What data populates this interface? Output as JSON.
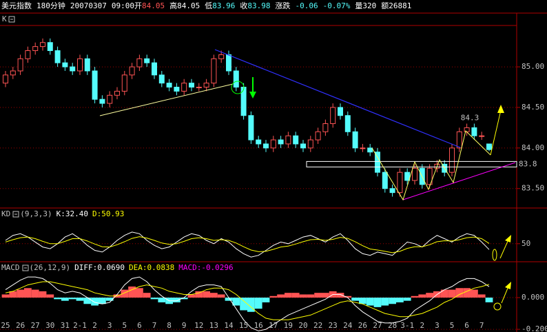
{
  "header": [
    {
      "text": "美元指数",
      "color": "#ffffff"
    },
    {
      "text": "180分钟",
      "color": "#ffffff"
    },
    {
      "text": "20070307",
      "color": "#ffffff"
    },
    {
      "text": "09:00",
      "color": "#ffffff"
    },
    {
      "text": "开",
      "color": "#ffffff"
    },
    {
      "text": "84.05",
      "color": "#ff5454"
    },
    {
      "text": "高",
      "color": "#ffffff"
    },
    {
      "text": "84.05",
      "color": "#ffffff"
    },
    {
      "text": "低",
      "color": "#ffffff"
    },
    {
      "text": "83.96",
      "color": "#54fcfc"
    },
    {
      "text": "收",
      "color": "#ffffff"
    },
    {
      "text": "83.98",
      "color": "#54fcfc"
    },
    {
      "text": "涨跌",
      "color": "#ffffff"
    },
    {
      "text": "-0.06",
      "color": "#54fcfc"
    },
    {
      "text": "-0.07%",
      "color": "#54fcfc"
    },
    {
      "text": "量320",
      "color": "#ffffff"
    },
    {
      "text": "额26881",
      "color": "#ffffff"
    }
  ],
  "chart_data": [
    {
      "type": "candlestick",
      "title": "K",
      "categories": [
        "25",
        null,
        "26",
        null,
        "27",
        null,
        "30",
        null,
        "31",
        null,
        "2-1",
        null,
        "2",
        null,
        "3",
        null,
        "5",
        null,
        "6",
        null,
        "7",
        null,
        "8",
        null,
        "9",
        null,
        "12",
        null,
        "13",
        null,
        "14",
        null,
        "15",
        null,
        "16",
        null,
        "17",
        null,
        "19",
        null,
        "20",
        null,
        "22",
        null,
        "23",
        null,
        "24",
        null,
        "26",
        null,
        "27",
        null,
        "28",
        null,
        "3-1",
        null,
        "2",
        null,
        "3",
        null,
        "5",
        null,
        "6",
        null,
        "7",
        null
      ],
      "open": [
        84.8,
        84.9,
        84.95,
        85.1,
        85.2,
        85.25,
        85.3,
        85.2,
        85.05,
        85.0,
        84.95,
        85.1,
        84.95,
        84.6,
        84.55,
        84.65,
        84.7,
        84.9,
        85.0,
        85.1,
        85.05,
        84.9,
        84.8,
        84.75,
        84.7,
        84.8,
        84.75,
        84.75,
        84.8,
        85.1,
        85.15,
        84.95,
        84.75,
        84.4,
        84.1,
        84.05,
        84.0,
        84.1,
        84.05,
        84.15,
        84.05,
        84.0,
        84.1,
        84.2,
        84.3,
        84.5,
        84.4,
        84.2,
        84.0,
        84.0,
        83.95,
        83.7,
        83.5,
        83.45,
        83.7,
        83.6,
        83.75,
        83.55,
        83.75,
        83.8,
        83.7,
        84.0,
        84.2,
        84.25,
        84.15,
        84.05
      ],
      "high": [
        84.95,
        85.0,
        85.15,
        85.25,
        85.3,
        85.35,
        85.35,
        85.25,
        85.1,
        85.05,
        85.15,
        85.15,
        85.0,
        84.65,
        84.7,
        84.75,
        84.95,
        85.05,
        85.15,
        85.15,
        85.1,
        84.95,
        84.85,
        84.8,
        84.85,
        84.85,
        84.8,
        84.85,
        85.15,
        85.2,
        85.2,
        85.0,
        84.8,
        84.45,
        84.15,
        84.1,
        84.15,
        84.15,
        84.2,
        84.2,
        84.1,
        84.15,
        84.25,
        84.35,
        84.55,
        84.55,
        84.45,
        84.25,
        84.05,
        84.05,
        84.0,
        83.75,
        83.55,
        83.75,
        83.75,
        83.8,
        83.8,
        83.8,
        83.85,
        83.85,
        84.05,
        84.25,
        84.3,
        84.3,
        84.2,
        84.05
      ],
      "low": [
        84.75,
        84.85,
        84.9,
        85.05,
        85.15,
        85.2,
        85.15,
        85.0,
        84.95,
        84.9,
        84.9,
        84.9,
        84.55,
        84.5,
        84.5,
        84.6,
        84.65,
        84.85,
        84.95,
        85.0,
        84.85,
        84.75,
        84.7,
        84.65,
        84.65,
        84.7,
        84.7,
        84.7,
        84.75,
        85.05,
        84.9,
        84.7,
        84.35,
        84.05,
        84.0,
        83.95,
        83.95,
        84.0,
        84.0,
        84.0,
        83.95,
        83.95,
        84.05,
        84.15,
        84.25,
        84.35,
        84.15,
        83.95,
        83.95,
        83.9,
        83.65,
        83.45,
        83.4,
        83.4,
        83.55,
        83.55,
        83.5,
        83.5,
        83.7,
        83.65,
        83.65,
        83.95,
        84.15,
        84.1,
        84.1,
        83.96
      ],
      "close": [
        84.9,
        84.95,
        85.1,
        85.2,
        85.25,
        85.3,
        85.2,
        85.05,
        85.0,
        84.95,
        85.1,
        84.95,
        84.6,
        84.55,
        84.65,
        84.7,
        84.9,
        85.0,
        85.1,
        85.05,
        84.9,
        84.8,
        84.75,
        84.7,
        84.8,
        84.75,
        84.75,
        84.8,
        85.1,
        85.15,
        84.95,
        84.75,
        84.4,
        84.1,
        84.05,
        84.0,
        84.1,
        84.05,
        84.15,
        84.05,
        84.0,
        84.1,
        84.2,
        84.3,
        84.5,
        84.4,
        84.2,
        84.0,
        84.0,
        83.95,
        83.7,
        83.5,
        83.45,
        83.7,
        83.6,
        83.75,
        83.55,
        83.75,
        83.8,
        83.7,
        84.0,
        84.2,
        84.25,
        84.15,
        84.15,
        83.98
      ],
      "up_color": "#ff5454",
      "down_color": "#54fcfc",
      "month_color": "#ff5454",
      "day_color": "#54fcfc",
      "ylim": [
        83.26,
        85.51
      ],
      "yticks": [
        {
          "value": 83.5,
          "label": "83.50"
        },
        {
          "value": 84,
          "label": "84.00"
        },
        {
          "value": 84.5,
          "label": "84.50"
        },
        {
          "value": 85,
          "label": "85.00"
        }
      ],
      "annotations": [
        {
          "value": 84.3,
          "label": "84.3"
        },
        {
          "value": 83.8,
          "label": "83.8"
        }
      ]
    },
    {
      "type": "line",
      "title": "KD",
      "params": "(9,3,3)",
      "series": [
        {
          "name": "K:32.40",
          "color": "#ffffff",
          "values": [
            60,
            75,
            80,
            70,
            55,
            40,
            35,
            50,
            70,
            80,
            65,
            45,
            30,
            25,
            40,
            60,
            75,
            85,
            80,
            60,
            45,
            35,
            40,
            55,
            70,
            80,
            75,
            60,
            50,
            65,
            55,
            35,
            20,
            10,
            15,
            30,
            45,
            55,
            50,
            60,
            70,
            75,
            65,
            55,
            70,
            80,
            60,
            35,
            20,
            15,
            25,
            20,
            15,
            35,
            55,
            50,
            40,
            60,
            75,
            65,
            55,
            70,
            80,
            75,
            55,
            32.4
          ]
        },
        {
          "name": "D:50.93",
          "color": "#ffff00",
          "values": [
            55,
            62,
            68,
            70,
            65,
            57,
            50,
            50,
            57,
            65,
            65,
            58,
            49,
            41,
            40,
            47,
            56,
            66,
            71,
            67,
            60,
            52,
            48,
            50,
            57,
            65,
            68,
            65,
            60,
            62,
            60,
            52,
            41,
            31,
            26,
            27,
            33,
            40,
            43,
            49,
            56,
            62,
            63,
            60,
            63,
            69,
            66,
            56,
            44,
            34,
            31,
            27,
            23,
            27,
            36,
            41,
            41,
            47,
            56,
            59,
            58,
            62,
            68,
            70,
            65,
            50.93
          ]
        }
      ],
      "ylim": [
        0,
        124
      ],
      "yticks": [
        50
      ]
    },
    {
      "type": "macd",
      "title": "MACD",
      "params": "(26,12,9)",
      "series": [
        {
          "name": "DIFF:0.0690",
          "color": "#ffffff",
          "values": [
            0.05,
            0.08,
            0.11,
            0.13,
            0.13,
            0.12,
            0.09,
            0.05,
            0.03,
            0.04,
            0.03,
            0.0,
            -0.03,
            -0.04,
            -0.03,
            0.02,
            0.08,
            0.12,
            0.13,
            0.1,
            0.05,
            0.01,
            -0.02,
            -0.02,
            0.0,
            0.04,
            0.07,
            0.08,
            0.08,
            0.07,
            0.0,
            -0.07,
            -0.14,
            -0.19,
            -0.21,
            -0.2,
            -0.17,
            -0.14,
            -0.11,
            -0.09,
            -0.07,
            -0.05,
            -0.03,
            -0.01,
            0.02,
            0.02,
            0.0,
            -0.05,
            -0.09,
            -0.12,
            -0.15,
            -0.16,
            -0.16,
            -0.15,
            -0.13,
            -0.08,
            -0.05,
            -0.02,
            0.02,
            0.05,
            0.07,
            0.1,
            0.12,
            0.12,
            0.1,
            0.069
          ]
        },
        {
          "name": "DEA:0.0838",
          "color": "#ffff00",
          "values": [
            0.03,
            0.04,
            0.06,
            0.08,
            0.09,
            0.1,
            0.1,
            0.09,
            0.08,
            0.07,
            0.06,
            0.05,
            0.03,
            0.02,
            0.01,
            0.01,
            0.03,
            0.05,
            0.07,
            0.08,
            0.07,
            0.06,
            0.04,
            0.03,
            0.02,
            0.02,
            0.03,
            0.05,
            0.06,
            0.06,
            0.05,
            0.02,
            -0.02,
            -0.06,
            -0.1,
            -0.13,
            -0.14,
            -0.14,
            -0.14,
            -0.13,
            -0.12,
            -0.11,
            -0.09,
            -0.07,
            -0.05,
            -0.03,
            -0.02,
            -0.03,
            -0.04,
            -0.06,
            -0.08,
            -0.1,
            -0.11,
            -0.12,
            -0.12,
            -0.11,
            -0.1,
            -0.08,
            -0.06,
            -0.03,
            -0.01,
            0.02,
            0.04,
            0.06,
            0.07,
            0.0838
          ]
        },
        {
          "name": "MACD:-0.0296",
          "color": "#ff00ff",
          "pos_color": "#ff5454",
          "neg_color": "#54fcfc",
          "values": [
            0.02,
            0.04,
            0.05,
            0.06,
            0.05,
            0.04,
            0.02,
            -0.01,
            -0.02,
            -0.01,
            -0.02,
            -0.04,
            -0.05,
            -0.04,
            -0.02,
            0.02,
            0.05,
            0.07,
            0.06,
            0.03,
            -0.01,
            -0.03,
            -0.04,
            -0.03,
            -0.01,
            0.02,
            0.04,
            0.04,
            0.03,
            0.02,
            -0.02,
            -0.05,
            -0.08,
            -0.09,
            -0.07,
            -0.03,
            0.01,
            0.02,
            0.03,
            0.03,
            0.02,
            0.02,
            0.03,
            0.03,
            0.04,
            0.03,
            0.01,
            -0.02,
            -0.04,
            -0.05,
            -0.06,
            -0.05,
            -0.04,
            -0.03,
            -0.02,
            0.01,
            0.02,
            0.03,
            0.04,
            0.05,
            0.05,
            0.06,
            0.06,
            0.05,
            0.02,
            -0.0296
          ]
        }
      ],
      "ylim": [
        -0.217,
        0.148
      ],
      "yticks": [
        {
          "value": 0,
          "label": "0.000"
        },
        {
          "value": -0.2,
          "label": "-0.200"
        }
      ]
    }
  ]
}
